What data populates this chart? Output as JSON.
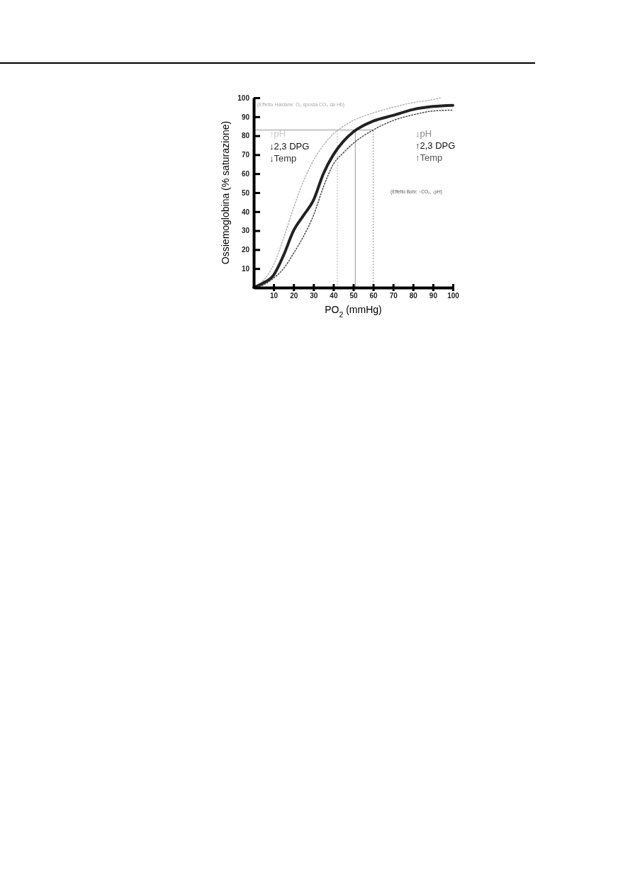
{
  "chart_data": {
    "type": "line",
    "xlabel": "PO$_{2}$ (mmHg)",
    "ylabel": "Ossiemoglobina (% saturazione)",
    "xlim": [
      0,
      100
    ],
    "ylim": [
      0,
      100
    ],
    "xticks": [
      10,
      20,
      30,
      40,
      50,
      60,
      70,
      80,
      90,
      100
    ],
    "yticks": [
      10,
      20,
      30,
      40,
      50,
      60,
      70,
      80,
      90,
      100
    ],
    "series": [
      {
        "color": "#b4b4b4",
        "line_style": "dotted",
        "x": [
          0,
          5,
          10,
          15,
          20,
          25,
          30,
          35,
          40,
          45,
          50,
          60,
          70,
          80,
          90,
          94
        ],
        "values": [
          0,
          4,
          12,
          26,
          42,
          56,
          67,
          75,
          81,
          85,
          88,
          92,
          95,
          97.5,
          99,
          100
        ]
      },
      {
        "color": "#222222",
        "line_style": "solid",
        "x": [
          0,
          5,
          10,
          15,
          20,
          25,
          30,
          35,
          40,
          45,
          50,
          60,
          70,
          80,
          90,
          100
        ],
        "values": [
          0,
          2.5,
          6.6,
          17,
          30,
          38,
          46,
          60,
          70,
          77,
          82,
          87.7,
          90.7,
          93.8,
          95.4,
          96
        ]
      },
      {
        "color": "#444444",
        "line_style": "dotted",
        "x": [
          0,
          5,
          10,
          15,
          20,
          25,
          30,
          35,
          40,
          45,
          50,
          60,
          70,
          80,
          90,
          100
        ],
        "values": [
          0,
          1.5,
          5,
          10,
          18,
          27,
          38,
          53,
          65,
          71,
          76,
          83,
          88,
          91,
          93,
          93.5
        ]
      }
    ],
    "ref_lines": [
      {
        "axis": "y",
        "value": 83,
        "color": "#999999",
        "line_style": "solid"
      },
      {
        "axis": "x",
        "value": 42,
        "color": "#999999",
        "line_style": "dotted"
      },
      {
        "axis": "x",
        "value": 51,
        "color": "#999999",
        "line_style": "solid"
      },
      {
        "axis": "x",
        "value": 60,
        "color": "#666666",
        "line_style": "dotted"
      }
    ],
    "annotations": [
      "(Effetto Haldane: O₂ sposta CO₂ da Hb)",
      "↑pH",
      "↓2,3 DPG",
      "↓Temp",
      "↓pH",
      "↑2,3 DPG",
      "↑Temp",
      "(Effetto Bohr: ↑CO₂, ↓pH)"
    ]
  }
}
